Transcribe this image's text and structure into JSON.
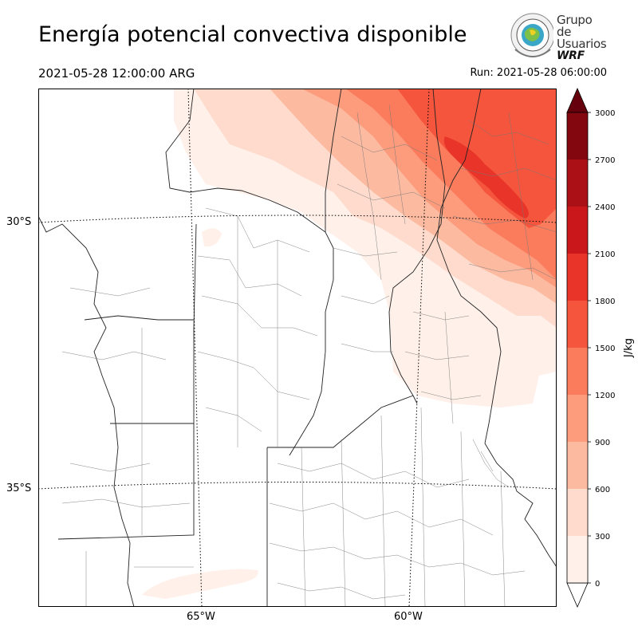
{
  "header": {
    "title": "Energía potencial convectiva disponible",
    "valid_time": "2021-05-28 12:00:00 ARG",
    "run_time": "Run: 2021-05-28 06:00:00"
  },
  "logo": {
    "line1": "Grupo de",
    "line2": "Usuarios",
    "line3": "WRF"
  },
  "map": {
    "lat_labels": [
      "30°S",
      "35°S"
    ],
    "lon_labels": [
      "65°W",
      "60°W"
    ]
  },
  "colorbar": {
    "label": "J/kg",
    "ticks": [
      "0",
      "300",
      "600",
      "900",
      "1200",
      "1500",
      "1800",
      "2100",
      "2400",
      "2700",
      "3000"
    ],
    "colors": [
      "#fff0e9",
      "#fedbcc",
      "#fcbba1",
      "#fc9c7d",
      "#fb7c5c",
      "#f5553c",
      "#e83429",
      "#ca171c",
      "#ab1016",
      "#82070f"
    ],
    "extend_min_color": "#ffffff",
    "extend_max_color": "#67000d"
  }
}
